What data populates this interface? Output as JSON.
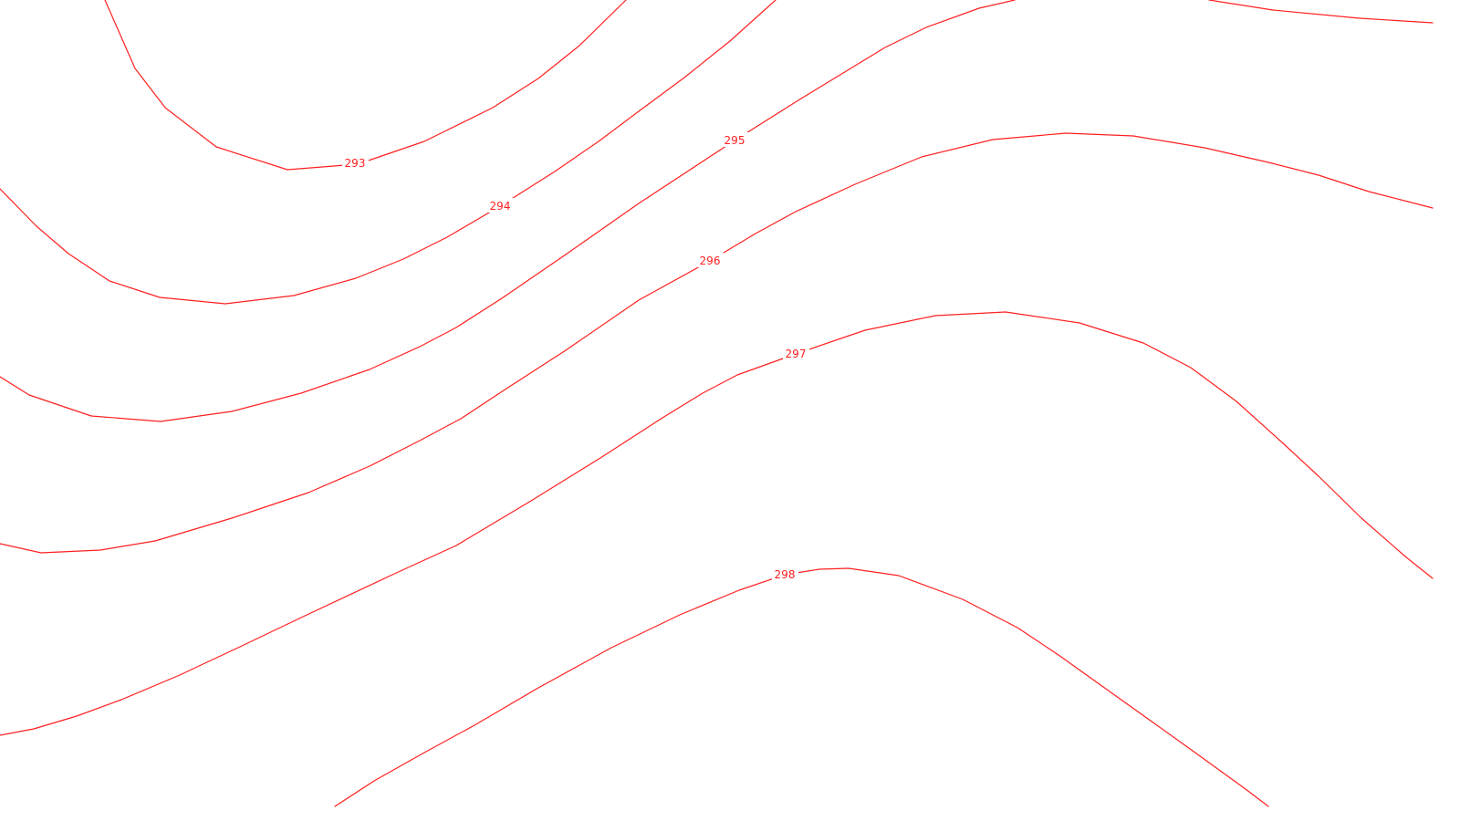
{
  "map": {
    "line_color": "#ff2020",
    "label_color": "#ff2020",
    "background_color": "#ffffff",
    "contours": [
      {
        "id": "unlabeled-top",
        "label": ""
      },
      {
        "id": "c293",
        "label": "293"
      },
      {
        "id": "c294",
        "label": "294"
      },
      {
        "id": "c295",
        "label": "295"
      },
      {
        "id": "c296",
        "label": "296"
      },
      {
        "id": "c297",
        "label": "297"
      },
      {
        "id": "c298",
        "label": "298"
      }
    ]
  }
}
